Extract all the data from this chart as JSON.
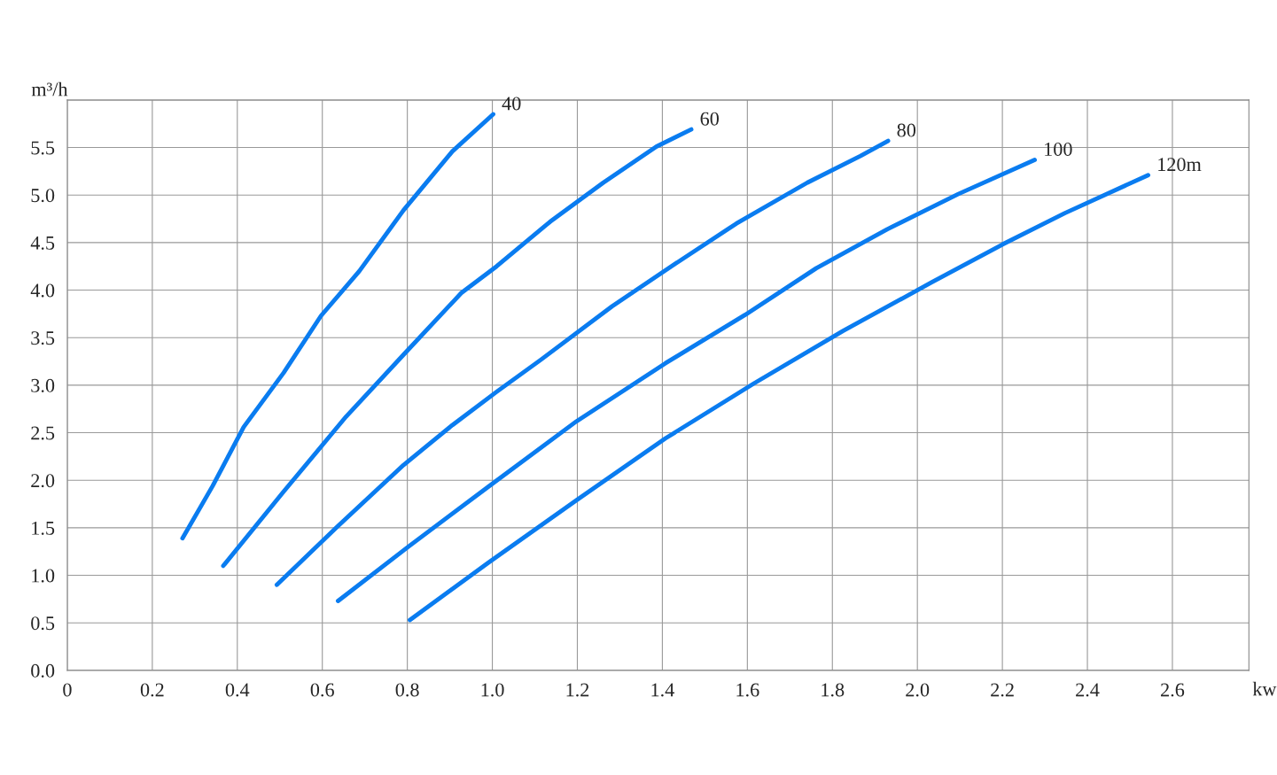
{
  "chart_data": {
    "type": "line",
    "xlabel": "kw",
    "ylabel": "m³/h",
    "xlim": [
      0,
      2.78
    ],
    "ylim": [
      0,
      6.0
    ],
    "xticks": [
      0,
      {
        "value": 0.2,
        "label": "0.2"
      },
      {
        "value": 0.4,
        "label": "0.4"
      },
      {
        "value": 0.6,
        "label": "0.6"
      },
      {
        "value": 0.8,
        "label": "0.8"
      },
      {
        "value": 1.0,
        "label": "1.0"
      },
      {
        "value": 1.2,
        "label": "1.2"
      },
      {
        "value": 1.4,
        "label": "1.4"
      },
      {
        "value": 1.6,
        "label": "1.6"
      },
      {
        "value": 1.8,
        "label": "1.8"
      },
      {
        "value": 2.0,
        "label": "2.0"
      },
      {
        "value": 2.2,
        "label": "2.2"
      },
      {
        "value": 2.4,
        "label": "2.4"
      },
      {
        "value": 2.6,
        "label": "2.6"
      }
    ],
    "yticks": [
      {
        "value": 0,
        "label": "0.0"
      },
      0.5,
      {
        "value": 1,
        "label": "1.0"
      },
      1.5,
      {
        "value": 2,
        "label": "2.0"
      },
      2.5,
      {
        "value": 3,
        "label": "3.0"
      },
      3.5,
      {
        "value": 4,
        "label": "4.0"
      },
      4.5,
      {
        "value": 5,
        "label": "5.0"
      },
      5.5,
      {
        "value": 6,
        "label": null
      }
    ],
    "grid": true,
    "marker": "none",
    "line_style": "solid",
    "legend": false,
    "series": [
      {
        "name": "40",
        "color": "#0a7cf0",
        "x": [
          0.271,
          0.342,
          0.415,
          0.509,
          0.597,
          0.687,
          0.791,
          0.906,
          1.002
        ],
        "values": [
          1.39,
          1.94,
          2.56,
          3.13,
          3.73,
          4.2,
          4.84,
          5.46,
          5.85
        ]
      },
      {
        "name": "60",
        "color": "#0a7cf0",
        "x": [
          0.367,
          0.509,
          0.656,
          0.791,
          0.927,
          1.01,
          1.136,
          1.261,
          1.386,
          1.468
        ],
        "values": [
          1.1,
          1.88,
          2.67,
          3.32,
          3.97,
          4.25,
          4.72,
          5.13,
          5.51,
          5.69
        ]
      },
      {
        "name": "80",
        "color": "#0a7cf0",
        "x": [
          0.493,
          0.635,
          0.791,
          0.906,
          1.01,
          1.115,
          1.282,
          1.428,
          1.574,
          1.741,
          1.866,
          1.931
        ],
        "values": [
          0.9,
          1.51,
          2.16,
          2.58,
          2.93,
          3.27,
          3.83,
          4.27,
          4.7,
          5.13,
          5.41,
          5.57
        ]
      },
      {
        "name": "100",
        "color": "#0a7cf0",
        "x": [
          0.637,
          0.802,
          0.99,
          1.198,
          1.407,
          1.595,
          1.762,
          1.929,
          2.096,
          2.276
        ],
        "values": [
          0.73,
          1.3,
          1.93,
          2.62,
          3.23,
          3.74,
          4.23,
          4.64,
          5.01,
          5.37
        ]
      },
      {
        "name": "120m",
        "color": "#0a7cf0",
        "x": [
          0.806,
          0.99,
          1.198,
          1.407,
          1.616,
          1.825,
          2.033,
          2.2,
          2.347,
          2.543
        ],
        "values": [
          0.53,
          1.13,
          1.79,
          2.44,
          3.02,
          3.57,
          4.08,
          4.48,
          4.81,
          5.21
        ]
      }
    ]
  }
}
